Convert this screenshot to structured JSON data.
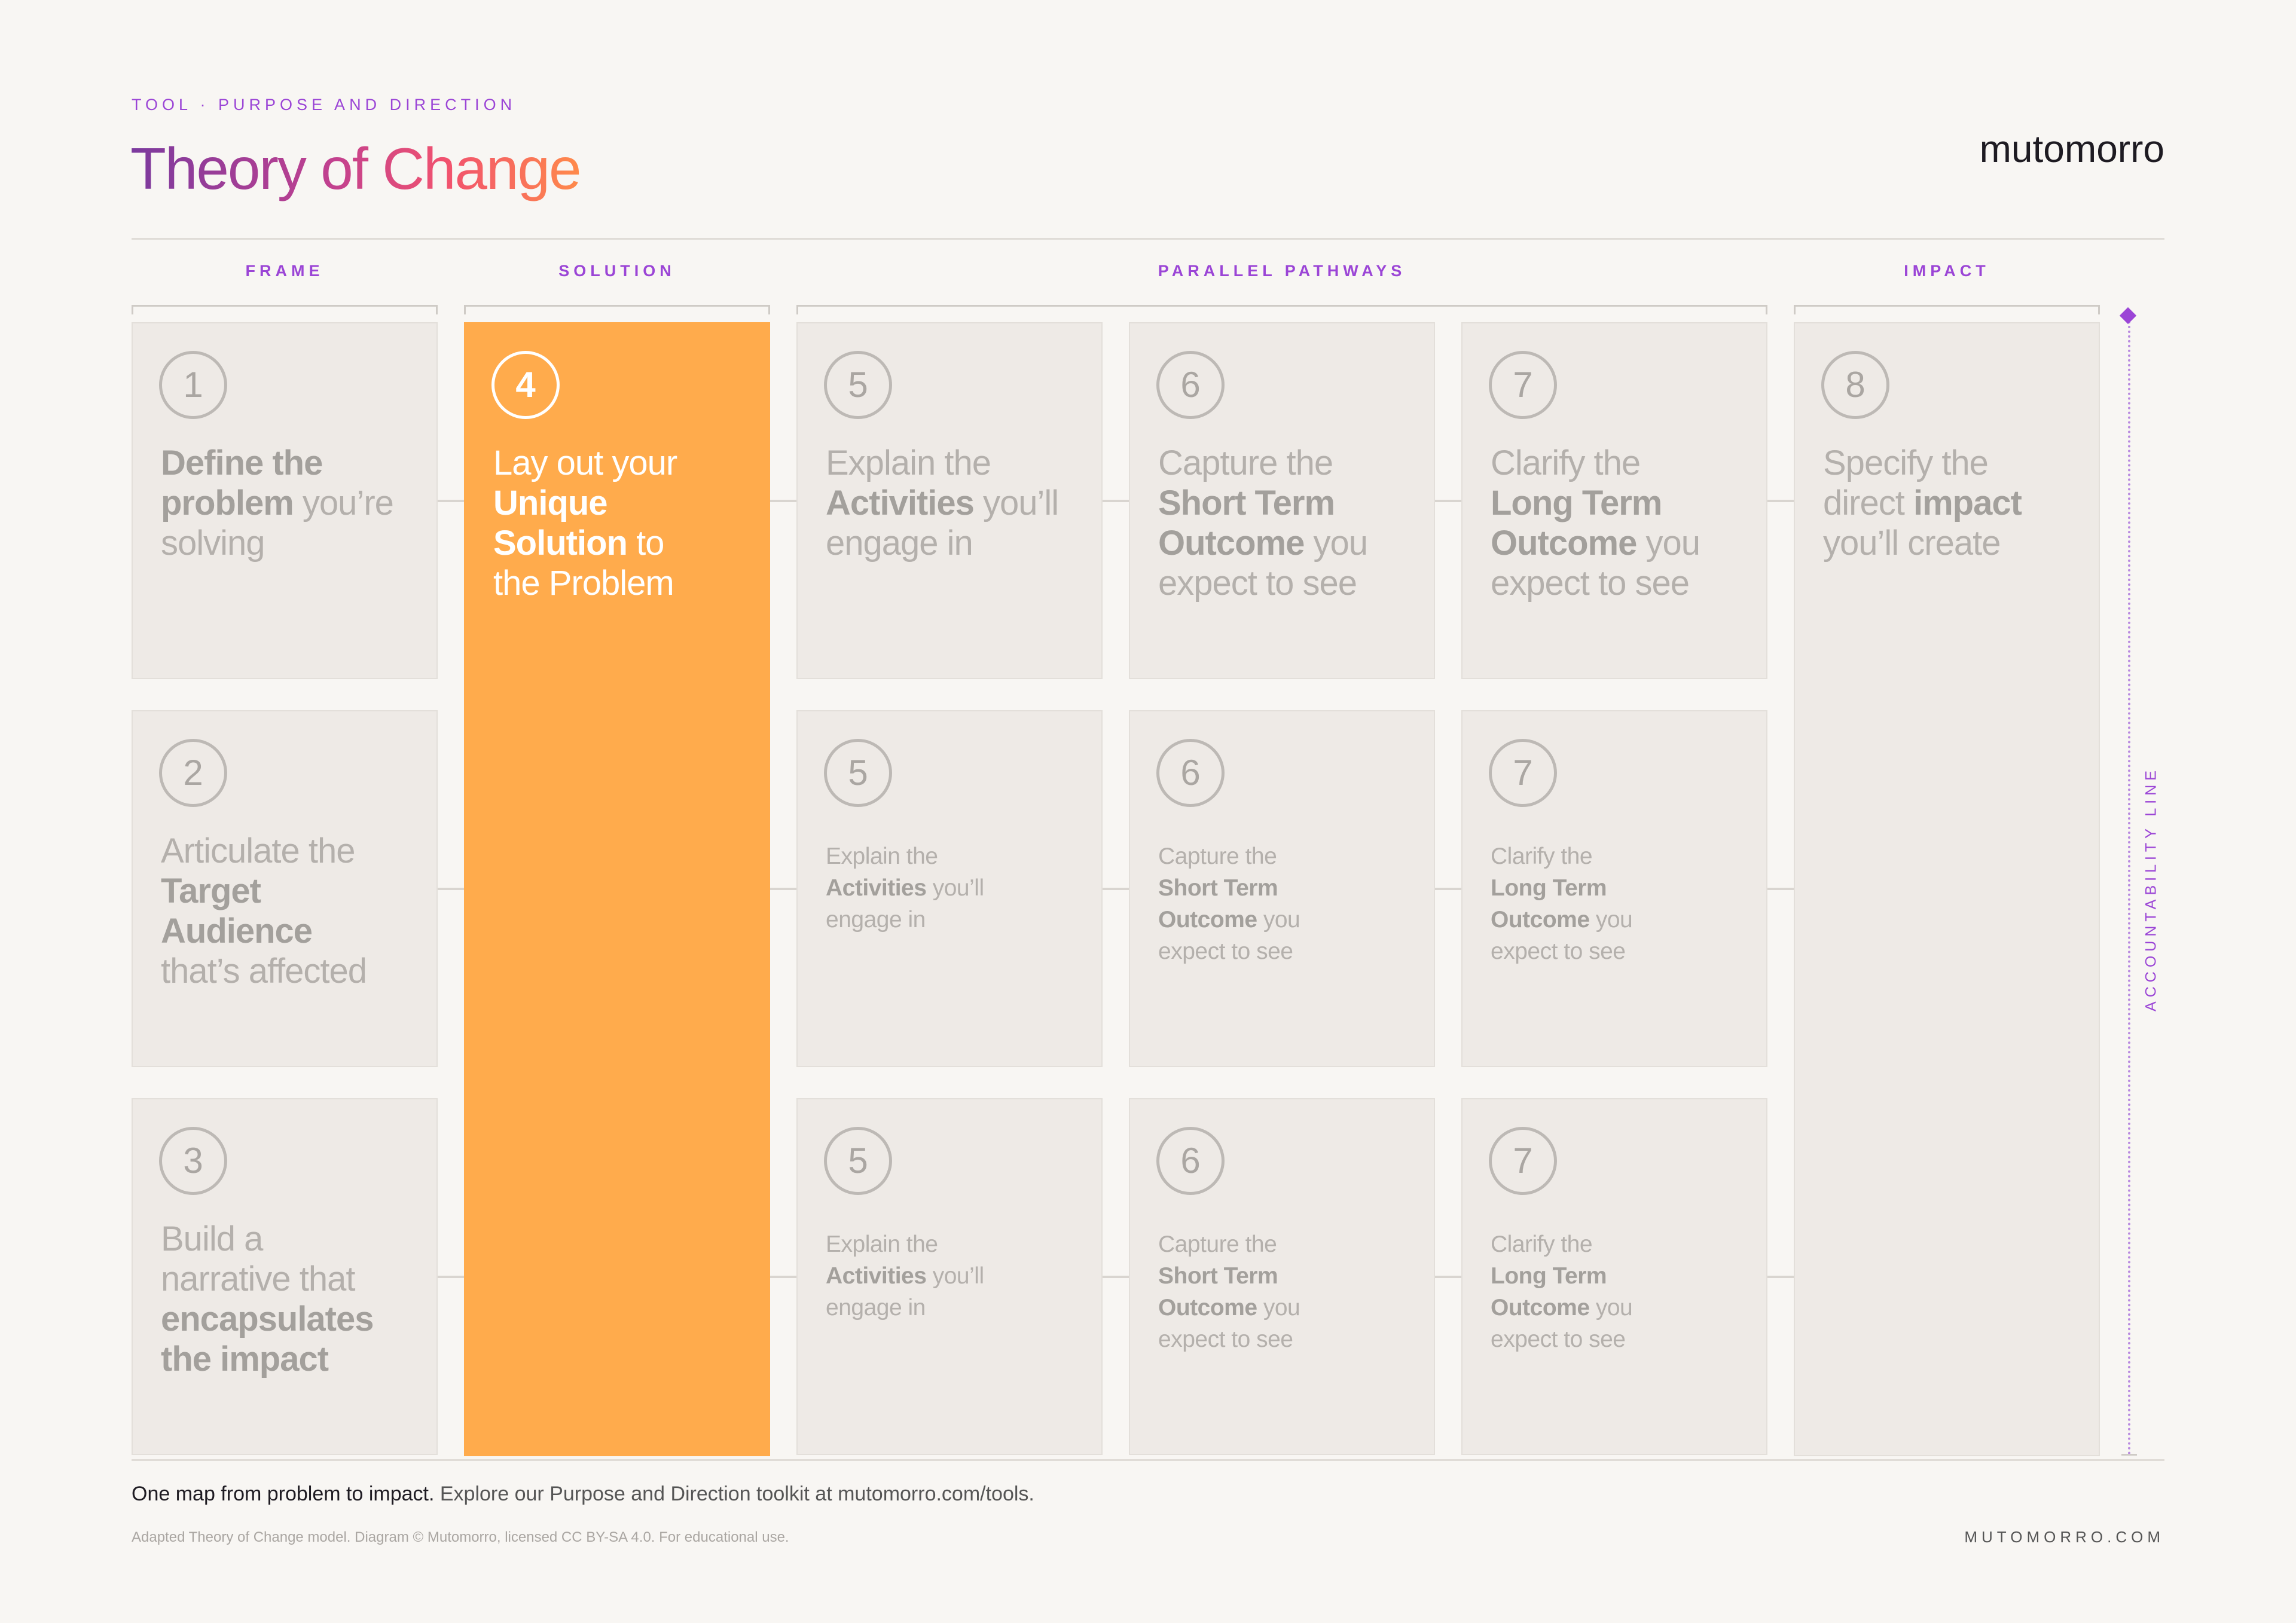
{
  "header": {
    "eyebrow": "TOOL · PURPOSE AND DIRECTION",
    "title": "Theory of Change",
    "brand": "mutomorro"
  },
  "groups": [
    {
      "label": "FRAME",
      "columns": [
        [
          {
            "number": "1",
            "lines": [
              [
                {
                  "text": "Define the",
                  "bold": true
                }
              ],
              [
                {
                  "text": "problem",
                  "bold": true
                },
                {
                  "text": " you’re"
                }
              ],
              [
                {
                  "text": "solving"
                }
              ]
            ]
          },
          {
            "number": "2",
            "lines": [
              [
                {
                  "text": "Articulate the"
                }
              ],
              [
                {
                  "text": "Target",
                  "bold": true
                }
              ],
              [
                {
                  "text": "Audience",
                  "bold": true
                }
              ],
              [
                {
                  "text": "that’s affected"
                }
              ]
            ]
          },
          {
            "number": "3",
            "lines": [
              [
                {
                  "text": "Build a"
                }
              ],
              [
                {
                  "text": "narrative that"
                }
              ],
              [
                {
                  "text": "encapsulates",
                  "bold": true
                }
              ],
              [
                {
                  "text": "the impact",
                  "bold": true
                }
              ]
            ]
          }
        ]
      ]
    },
    {
      "label": "SOLUTION",
      "columns": [
        [
          {
            "number": "4",
            "highlight": true,
            "lines": [
              [
                {
                  "text": "Lay out your"
                }
              ],
              [
                {
                  "text": "Unique",
                  "bold": true
                }
              ],
              [
                {
                  "text": "Solution",
                  "bold": true
                },
                {
                  "text": " to"
                }
              ],
              [
                {
                  "text": "the Problem"
                }
              ]
            ]
          }
        ]
      ]
    },
    {
      "label": "PARALLEL PATHWAYS",
      "columns": [
        [
          {
            "number": "5",
            "lines": [
              [
                {
                  "text": "Explain the"
                }
              ],
              [
                {
                  "text": "Activities",
                  "bold": true
                },
                {
                  "text": " you’ll"
                }
              ],
              [
                {
                  "text": "engage in"
                }
              ]
            ]
          },
          {
            "number": "5",
            "small": true,
            "lines": [
              [
                {
                  "text": "Explain the"
                }
              ],
              [
                {
                  "text": "Activities",
                  "bold": true
                },
                {
                  "text": " you’ll"
                }
              ],
              [
                {
                  "text": "engage in"
                }
              ]
            ]
          },
          {
            "number": "5",
            "small": true,
            "lines": [
              [
                {
                  "text": "Explain the"
                }
              ],
              [
                {
                  "text": "Activities",
                  "bold": true
                },
                {
                  "text": " you’ll"
                }
              ],
              [
                {
                  "text": "engage in"
                }
              ]
            ]
          }
        ],
        [
          {
            "number": "6",
            "lines": [
              [
                {
                  "text": "Capture the"
                }
              ],
              [
                {
                  "text": "Short Term",
                  "bold": true
                }
              ],
              [
                {
                  "text": "Outcome",
                  "bold": true
                },
                {
                  "text": " you"
                }
              ],
              [
                {
                  "text": "expect to see"
                }
              ]
            ]
          },
          {
            "number": "6",
            "small": true,
            "lines": [
              [
                {
                  "text": "Capture the"
                }
              ],
              [
                {
                  "text": "Short Term",
                  "bold": true
                }
              ],
              [
                {
                  "text": "Outcome",
                  "bold": true
                },
                {
                  "text": " you"
                }
              ],
              [
                {
                  "text": "expect to see"
                }
              ]
            ]
          },
          {
            "number": "6",
            "small": true,
            "lines": [
              [
                {
                  "text": "Capture the"
                }
              ],
              [
                {
                  "text": "Short Term",
                  "bold": true
                }
              ],
              [
                {
                  "text": "Outcome",
                  "bold": true
                },
                {
                  "text": " you"
                }
              ],
              [
                {
                  "text": "expect to see"
                }
              ]
            ]
          }
        ],
        [
          {
            "number": "7",
            "lines": [
              [
                {
                  "text": "Clarify the"
                }
              ],
              [
                {
                  "text": "Long Term",
                  "bold": true
                }
              ],
              [
                {
                  "text": "Outcome",
                  "bold": true
                },
                {
                  "text": " you"
                }
              ],
              [
                {
                  "text": "expect to see"
                }
              ]
            ]
          },
          {
            "number": "7",
            "small": true,
            "lines": [
              [
                {
                  "text": "Clarify the"
                }
              ],
              [
                {
                  "text": "Long Term",
                  "bold": true
                }
              ],
              [
                {
                  "text": "Outcome",
                  "bold": true
                },
                {
                  "text": " you"
                }
              ],
              [
                {
                  "text": "expect to see"
                }
              ]
            ]
          },
          {
            "number": "7",
            "small": true,
            "lines": [
              [
                {
                  "text": "Clarify the"
                }
              ],
              [
                {
                  "text": "Long Term",
                  "bold": true
                }
              ],
              [
                {
                  "text": "Outcome",
                  "bold": true
                },
                {
                  "text": " you"
                }
              ],
              [
                {
                  "text": "expect to see"
                }
              ]
            ]
          }
        ]
      ]
    },
    {
      "label": "IMPACT",
      "columns": [
        [
          {
            "number": "8",
            "lines": [
              [
                {
                  "text": "Specify the"
                }
              ],
              [
                {
                  "text": "direct "
                },
                {
                  "text": "impact",
                  "bold": true
                }
              ],
              [
                {
                  "text": "you’ll create"
                }
              ]
            ]
          }
        ]
      ]
    }
  ],
  "accountability": "ACCOUNTABILITY LINE",
  "footer": {
    "lead": "One map from problem to impact.",
    "text": " Explore our Purpose and Direction toolkit at mutomorro.com/tools.",
    "credit": "Adapted Theory of Change model. Diagram © Mutomorro, licensed CC BY-SA 4.0. For educational use.",
    "site": "MUTOMORRO.COM"
  }
}
